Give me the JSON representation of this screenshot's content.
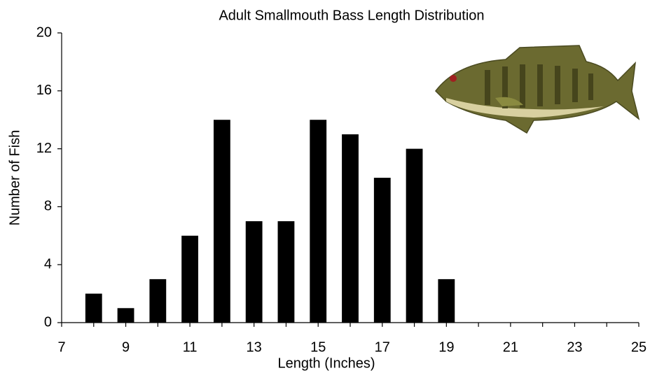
{
  "chart_data": {
    "type": "bar",
    "title": "Adult Smallmouth Bass Length Distribution",
    "x_label": "Length (Inches)",
    "y_label": "Number of Fish",
    "x": [
      8,
      9,
      10,
      11,
      12,
      13,
      14,
      15,
      16,
      17,
      18,
      19
    ],
    "values": [
      2,
      1,
      3,
      6,
      14,
      7,
      7,
      14,
      13,
      10,
      12,
      3
    ],
    "color": "#000000",
    "xlim": [
      7,
      25
    ],
    "xticks": [
      7,
      9,
      11,
      13,
      15,
      17,
      19,
      21,
      23,
      25
    ],
    "xminorticks": [
      8,
      10,
      12,
      14,
      16,
      18,
      20,
      22,
      24
    ],
    "ylim": [
      0,
      20
    ],
    "yticks": [
      0,
      4,
      8,
      12,
      16,
      20
    ],
    "grid": false
  }
}
